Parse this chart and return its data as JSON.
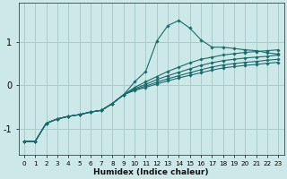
{
  "xlabel": "Humidex (Indice chaleur)",
  "background_color": "#cce8e8",
  "grid_color": "#aacccc",
  "line_color": "#1a6b6b",
  "xlim": [
    -0.5,
    23.5
  ],
  "ylim": [
    -1.6,
    1.9
  ],
  "yticks": [
    -1,
    0,
    1
  ],
  "xticks": [
    0,
    1,
    2,
    3,
    4,
    5,
    6,
    7,
    8,
    9,
    10,
    11,
    12,
    13,
    14,
    15,
    16,
    17,
    18,
    19,
    20,
    21,
    22,
    23
  ],
  "curves": [
    {
      "x": [
        0,
        1,
        2,
        3,
        4,
        5,
        6,
        7,
        8,
        9,
        10,
        11,
        12,
        13,
        14,
        15,
        16,
        17,
        18,
        19,
        20,
        21,
        22,
        23
      ],
      "y": [
        -1.3,
        -1.3,
        -0.88,
        -0.78,
        -0.72,
        -0.68,
        -0.62,
        -0.58,
        -0.42,
        -0.22,
        0.08,
        0.32,
        1.02,
        1.38,
        1.5,
        1.32,
        1.05,
        0.88,
        0.88,
        0.85,
        0.82,
        0.8,
        0.75,
        0.72
      ]
    },
    {
      "x": [
        0,
        1,
        2,
        3,
        4,
        5,
        6,
        7,
        8,
        9,
        10,
        11,
        12,
        13,
        14,
        15,
        16,
        17,
        18,
        19,
        20,
        21,
        22,
        23
      ],
      "y": [
        -1.3,
        -1.3,
        -0.88,
        -0.78,
        -0.72,
        -0.68,
        -0.62,
        -0.58,
        -0.42,
        -0.22,
        -0.05,
        0.08,
        0.2,
        0.32,
        0.42,
        0.52,
        0.6,
        0.65,
        0.7,
        0.73,
        0.76,
        0.78,
        0.8,
        0.82
      ]
    },
    {
      "x": [
        0,
        1,
        2,
        3,
        4,
        5,
        6,
        7,
        8,
        9,
        10,
        11,
        12,
        13,
        14,
        15,
        16,
        17,
        18,
        19,
        20,
        21,
        22,
        23
      ],
      "y": [
        -1.3,
        -1.3,
        -0.88,
        -0.78,
        -0.72,
        -0.68,
        -0.62,
        -0.58,
        -0.42,
        -0.22,
        -0.08,
        0.02,
        0.13,
        0.22,
        0.3,
        0.38,
        0.46,
        0.52,
        0.57,
        0.6,
        0.63,
        0.65,
        0.67,
        0.7
      ]
    },
    {
      "x": [
        0,
        1,
        2,
        3,
        4,
        5,
        6,
        7,
        8,
        9,
        10,
        11,
        12,
        13,
        14,
        15,
        16,
        17,
        18,
        19,
        20,
        21,
        22,
        23
      ],
      "y": [
        -1.3,
        -1.3,
        -0.88,
        -0.78,
        -0.72,
        -0.68,
        -0.62,
        -0.58,
        -0.42,
        -0.22,
        -0.1,
        -0.02,
        0.07,
        0.15,
        0.22,
        0.29,
        0.36,
        0.42,
        0.47,
        0.5,
        0.53,
        0.55,
        0.58,
        0.6
      ]
    },
    {
      "x": [
        0,
        1,
        2,
        3,
        4,
        5,
        6,
        7,
        8,
        9,
        10,
        11,
        12,
        13,
        14,
        15,
        16,
        17,
        18,
        19,
        20,
        21,
        22,
        23
      ],
      "y": [
        -1.3,
        -1.3,
        -0.88,
        -0.78,
        -0.72,
        -0.68,
        -0.62,
        -0.58,
        -0.42,
        -0.22,
        -0.12,
        -0.05,
        0.03,
        0.1,
        0.17,
        0.23,
        0.29,
        0.35,
        0.4,
        0.43,
        0.46,
        0.48,
        0.51,
        0.53
      ]
    }
  ]
}
